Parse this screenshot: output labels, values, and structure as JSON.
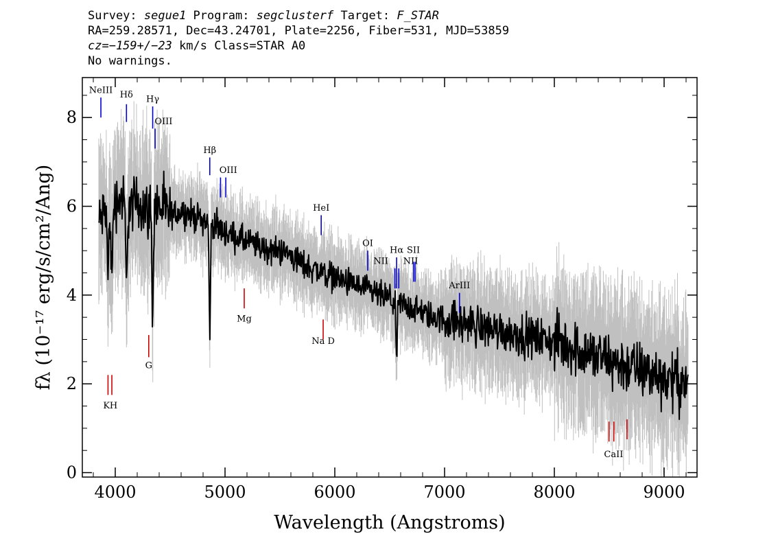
{
  "header": {
    "line1": {
      "survey_label": "Survey: ",
      "survey": "segue1",
      "program_label": " Program: ",
      "program": "segclusterf",
      "target_label": " Target: ",
      "target": "F_STAR"
    },
    "line2": "RA=259.28571, Dec=43.24701, Plate=2256, Fiber=531, MJD=53859",
    "line3": {
      "cz": "cz=−159+/−23",
      "rest": " km/s Class=STAR A0"
    },
    "line4": "No warnings."
  },
  "chart_data": {
    "type": "line",
    "xlabel": "Wavelength (Angstroms)",
    "ylabel": "fλ (10⁻¹⁷ erg/s/cm²/Ang)",
    "xlim": [
      3700,
      9300
    ],
    "ylim": [
      -0.1,
      8.9
    ],
    "x_ticks": [
      4000,
      5000,
      6000,
      7000,
      8000,
      9000
    ],
    "y_ticks": [
      0,
      2,
      4,
      6,
      8
    ],
    "grid": false,
    "colors": {
      "flux": "#000000",
      "error_band": "#c0c0c0",
      "emission": "#0000cc",
      "absorption": "#cc0000"
    },
    "series": [
      {
        "name": "flux",
        "x": [
          3850,
          3900,
          3950,
          4000,
          4050,
          4100,
          4200,
          4300,
          4400,
          4500,
          4600,
          4700,
          4800,
          4900,
          5000,
          5100,
          5200,
          5300,
          5400,
          5500,
          5600,
          5700,
          5800,
          5900,
          6000,
          6100,
          6200,
          6300,
          6400,
          6500,
          6600,
          6700,
          6800,
          6900,
          7000,
          7200,
          7400,
          7600,
          7800,
          8000,
          8200,
          8400,
          8600,
          8800,
          9000,
          9200
        ],
        "y": [
          5.6,
          5.9,
          5.8,
          6.1,
          6.2,
          5.9,
          6.1,
          5.9,
          6.0,
          5.8,
          5.9,
          5.8,
          5.7,
          5.6,
          5.4,
          5.3,
          5.2,
          5.1,
          5.0,
          5.0,
          4.9,
          4.7,
          4.6,
          4.5,
          4.4,
          4.3,
          4.2,
          4.1,
          4.0,
          3.9,
          3.8,
          3.7,
          3.6,
          3.5,
          3.45,
          3.35,
          3.25,
          3.15,
          3.05,
          2.95,
          2.8,
          2.6,
          2.45,
          2.3,
          2.15,
          2.0
        ]
      }
    ],
    "absorption_features": [
      {
        "x": 3934,
        "depth": 1.5
      },
      {
        "x": 3969,
        "depth": 1.6
      },
      {
        "x": 4102,
        "depth": 1.8
      },
      {
        "x": 4340,
        "depth": 2.3
      },
      {
        "x": 4861,
        "depth": 2.4
      },
      {
        "x": 6563,
        "depth": 1.3
      }
    ],
    "line_markers": [
      {
        "label": "NeIII",
        "x": 3869,
        "y1": 8.0,
        "y2": 8.45,
        "type": "emission",
        "lx": 3869,
        "ly": 8.55
      },
      {
        "label": "Hδ",
        "x": 4102,
        "y1": 7.9,
        "y2": 8.3,
        "type": "emission",
        "lx": 4102,
        "ly": 8.45
      },
      {
        "label": "Hγ",
        "x": 4341,
        "y1": 7.75,
        "y2": 8.25,
        "type": "emission",
        "lx": 4341,
        "ly": 8.35
      },
      {
        "label": "OIII",
        "x": 4363,
        "y1": 7.3,
        "y2": 7.75,
        "type": "emission",
        "lx": 4440,
        "ly": 7.85
      },
      {
        "label": "Hβ",
        "x": 4861,
        "y1": 6.7,
        "y2": 7.1,
        "type": "emission",
        "lx": 4861,
        "ly": 7.2
      },
      {
        "label": "OIII",
        "x": 4959,
        "y1": 6.2,
        "y2": 6.65,
        "type": "emission",
        "lx": 5030,
        "ly": 6.75
      },
      {
        "label": "OIII",
        "x": 5007,
        "y1": 6.2,
        "y2": 6.65,
        "type": "emission",
        "lx": 5030,
        "ly": 6.75
      },
      {
        "label": "HeI",
        "x": 5876,
        "y1": 5.35,
        "y2": 5.8,
        "type": "emission",
        "lx": 5876,
        "ly": 5.9
      },
      {
        "label": "OI",
        "x": 6300,
        "y1": 4.55,
        "y2": 5.0,
        "type": "emission",
        "lx": 6300,
        "ly": 5.1
      },
      {
        "label": "NII",
        "x": 6548,
        "y1": 4.15,
        "y2": 4.6,
        "type": "emission",
        "lx": 6420,
        "ly": 4.7
      },
      {
        "label": "Hα",
        "x": 6563,
        "y1": 4.15,
        "y2": 4.85,
        "type": "emission",
        "lx": 6563,
        "ly": 4.95
      },
      {
        "label": "NII",
        "x": 6583,
        "y1": 4.15,
        "y2": 4.6,
        "type": "emission",
        "lx": 6690,
        "ly": 4.7
      },
      {
        "label": "SII",
        "x": 6716,
        "y1": 4.3,
        "y2": 4.75,
        "type": "emission",
        "lx": 6716,
        "ly": 4.95
      },
      {
        "label": "SII",
        "x": 6731,
        "y1": 4.3,
        "y2": 4.75,
        "type": "emission",
        "lx": 6716,
        "ly": 4.95
      },
      {
        "label": "ArIII",
        "x": 7136,
        "y1": 3.6,
        "y2": 4.05,
        "type": "emission",
        "lx": 7136,
        "ly": 4.15
      },
      {
        "label": "K",
        "x": 3934,
        "y1": 1.75,
        "y2": 2.2,
        "type": "absorption",
        "lx": 3920,
        "ly": 1.45
      },
      {
        "label": "H",
        "x": 3969,
        "y1": 1.75,
        "y2": 2.2,
        "type": "absorption",
        "lx": 3985,
        "ly": 1.45
      },
      {
        "label": "G",
        "x": 4305,
        "y1": 2.6,
        "y2": 3.1,
        "type": "absorption",
        "lx": 4305,
        "ly": 2.35
      },
      {
        "label": "Mg",
        "x": 5175,
        "y1": 3.7,
        "y2": 4.15,
        "type": "absorption",
        "lx": 5175,
        "ly": 3.4
      },
      {
        "label": "Na  D",
        "x": 5894,
        "y1": 3.0,
        "y2": 3.45,
        "type": "absorption",
        "lx": 5894,
        "ly": 2.9
      },
      {
        "label": "CaII",
        "x": 8498,
        "y1": 0.7,
        "y2": 1.15,
        "type": "absorption",
        "lx": 8540,
        "ly": 0.35
      },
      {
        "label": "CaII",
        "x": 8542,
        "y1": 0.7,
        "y2": 1.15,
        "type": "absorption",
        "lx": 8540,
        "ly": 0.35
      },
      {
        "label": "CaII",
        "x": 8662,
        "y1": 0.75,
        "y2": 1.2,
        "type": "absorption",
        "lx": 8540,
        "ly": 0.35
      }
    ]
  }
}
